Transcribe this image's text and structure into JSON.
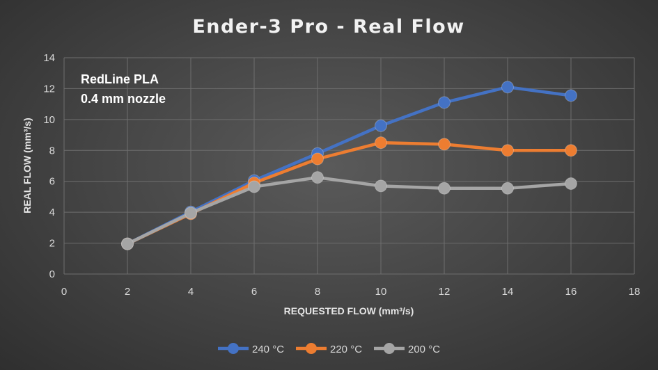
{
  "chart_data": {
    "type": "line",
    "title": "Ender-3 Pro - Real Flow",
    "xlabel": "REQUESTED FLOW (mm³/s)",
    "ylabel": "REAL FLOW (mm³/s)",
    "xlim": [
      0,
      18
    ],
    "ylim": [
      0,
      14
    ],
    "xticks": [
      0,
      2,
      4,
      6,
      8,
      10,
      12,
      14,
      16,
      18
    ],
    "yticks": [
      0,
      2,
      4,
      6,
      8,
      10,
      12,
      14
    ],
    "grid": true,
    "legend_position": "bottom",
    "annotations": [
      "RedLine PLA",
      "0.4 mm nozzle"
    ],
    "series": [
      {
        "name": "240 °C",
        "color": "#4472c4",
        "x": [
          2,
          4,
          6,
          8,
          10,
          12,
          14,
          16
        ],
        "y": [
          1.95,
          4.02,
          6.05,
          7.8,
          9.6,
          11.1,
          12.1,
          11.55
        ]
      },
      {
        "name": "220 °C",
        "color": "#ed7d31",
        "x": [
          2,
          4,
          6,
          8,
          10,
          12,
          14,
          16
        ],
        "y": [
          1.95,
          3.9,
          5.9,
          7.45,
          8.5,
          8.4,
          8.0,
          8.0
        ]
      },
      {
        "name": "200 °C",
        "color": "#a5a5a5",
        "x": [
          2,
          4,
          6,
          8,
          10,
          12,
          14,
          16
        ],
        "y": [
          1.95,
          3.95,
          5.65,
          6.25,
          5.7,
          5.55,
          5.55,
          5.85
        ]
      }
    ]
  }
}
